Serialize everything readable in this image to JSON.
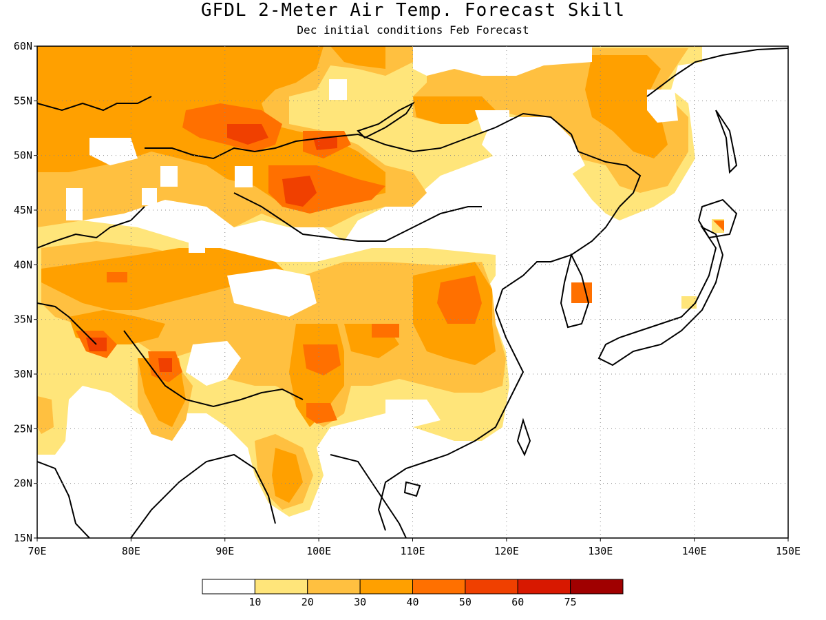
{
  "title": "GFDL 2-Meter Air Temp. Forecast Skill",
  "subtitle": "Dec initial conditions  Feb Forecast",
  "map": {
    "lon_range": [
      70,
      150
    ],
    "lat_range": [
      15,
      60
    ],
    "lon_ticks": [
      "70E",
      "80E",
      "90E",
      "100E",
      "110E",
      "120E",
      "130E",
      "140E",
      "150E"
    ],
    "lat_ticks": [
      "15N",
      "20N",
      "25N",
      "30N",
      "35N",
      "40N",
      "45N",
      "50N",
      "55N",
      "60N"
    ],
    "grid": "dotted",
    "region": "East Asia"
  },
  "legend": {
    "labels": [
      "10",
      "20",
      "30",
      "40",
      "50",
      "60",
      "75"
    ],
    "colors": [
      "#ffffff",
      "#ffe57a",
      "#ffc040",
      "#ffa000",
      "#ff7000",
      "#f04000",
      "#d81800",
      "#a00000"
    ]
  },
  "skill_regions": [
    {
      "level": 30,
      "color": "#ffa000",
      "desc": "northwest Siberia / Kazakhstan"
    },
    {
      "level": 40,
      "color": "#ff7000",
      "desc": "western Mongolia"
    },
    {
      "level": 50,
      "color": "#f04000",
      "desc": "western Mongolia core"
    },
    {
      "level": 40,
      "color": "#ff7000",
      "desc": "north China plain"
    },
    {
      "level": 40,
      "color": "#ff7000",
      "desc": "Sichuan basin"
    },
    {
      "level": 40,
      "color": "#ff7000",
      "desc": "north India / Himalaya"
    }
  ]
}
